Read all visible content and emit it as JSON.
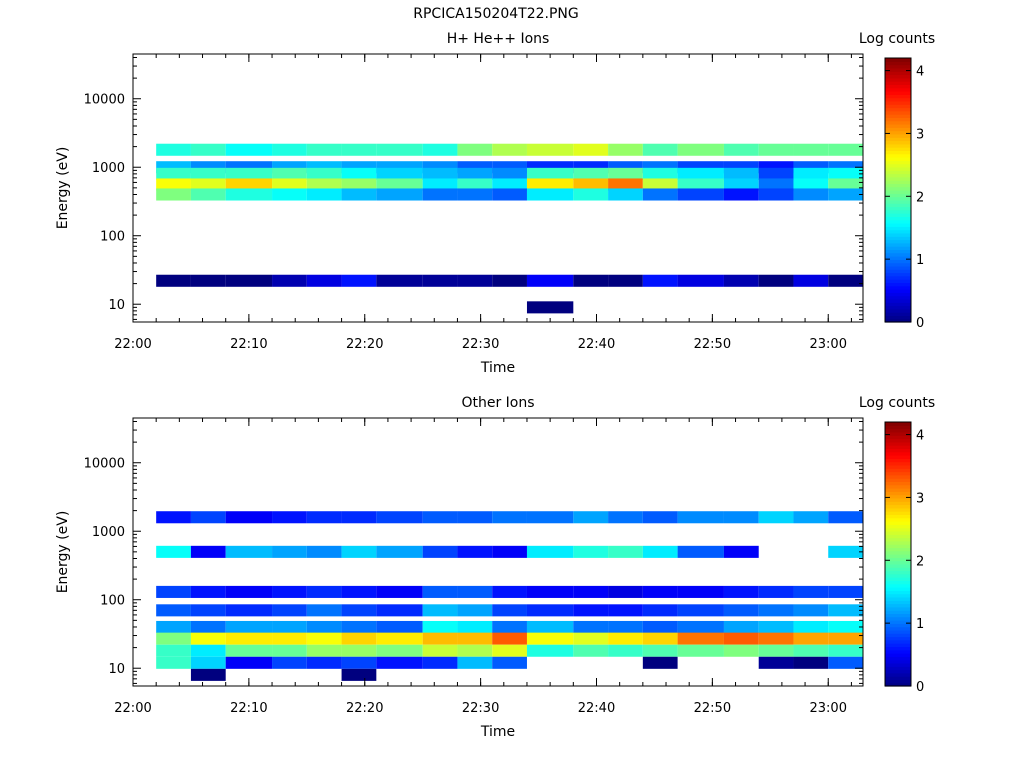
{
  "figure_title": "RPCICA150204T22.PNG",
  "colorscale": [
    "#00007f",
    "#0000ff",
    "#007fff",
    "#00ffff",
    "#7fff7f",
    "#ffff00",
    "#ff7f00",
    "#ff0000",
    "#7f0000"
  ],
  "chart_data": [
    {
      "type": "heatmap",
      "title": "H+ He++ Ions",
      "xlabel": "Time",
      "ylabel": "Energy (eV)",
      "colorbar_label": "Log counts",
      "y_scale": "log",
      "ylim": [
        5.5,
        45000
      ],
      "xlim": [
        "22:00",
        "23:03"
      ],
      "x_ticks": [
        "22:00",
        "22:10",
        "22:20",
        "22:30",
        "22:40",
        "22:50",
        "23:00"
      ],
      "y_ticks": [
        "10",
        "100",
        "1000",
        "10000"
      ],
      "colorbar_ticks": [
        "0",
        "1",
        "2",
        "3",
        "4"
      ],
      "color_range": [
        0,
        4.2
      ],
      "time_bins_start": [
        "22:02",
        "22:05",
        "22:08",
        "22:12",
        "22:15",
        "22:18",
        "22:21",
        "22:25",
        "22:28",
        "22:31",
        "22:34",
        "22:38",
        "22:41",
        "22:44",
        "22:47",
        "22:51",
        "22:54",
        "22:57",
        "23:00"
      ],
      "energy_bands_ev": [
        {
          "energy": 1800,
          "values": [
            1.7,
            1.8,
            1.6,
            1.7,
            1.8,
            1.8,
            1.8,
            1.7,
            2.1,
            2.3,
            2.4,
            2.5,
            2.2,
            1.9,
            2.1,
            1.9,
            2.0,
            2.0,
            2.0
          ]
        },
        {
          "energy": 1000,
          "values": [
            1.3,
            1.1,
            1.0,
            1.2,
            1.3,
            1.2,
            1.2,
            1.1,
            0.9,
            0.9,
            0.7,
            0.7,
            0.9,
            1.0,
            0.8,
            0.8,
            0.6,
            0.9,
            1.0
          ]
        },
        {
          "energy": 800,
          "values": [
            1.8,
            1.8,
            1.8,
            1.9,
            1.8,
            1.6,
            1.4,
            1.3,
            1.2,
            1.1,
            1.8,
            1.9,
            2.0,
            1.7,
            1.5,
            1.3,
            0.8,
            1.5,
            1.6
          ]
        },
        {
          "energy": 560,
          "values": [
            2.6,
            2.5,
            2.8,
            2.5,
            2.3,
            2.2,
            2.0,
            1.5,
            1.8,
            1.5,
            2.7,
            2.9,
            3.2,
            2.4,
            1.8,
            1.4,
            1.0,
            1.6,
            2.0
          ]
        },
        {
          "energy": 400,
          "values": [
            2.1,
            1.9,
            1.7,
            1.6,
            1.5,
            1.3,
            1.2,
            1.0,
            1.0,
            0.9,
            1.5,
            1.7,
            1.4,
            1.0,
            0.8,
            0.6,
            0.8,
            1.1,
            1.2
          ]
        },
        {
          "energy": 22,
          "values": [
            0.0,
            0.0,
            0.0,
            0.2,
            0.4,
            0.6,
            0.1,
            0.1,
            0.1,
            0.0,
            0.5,
            0.0,
            0.0,
            0.6,
            0.4,
            0.2,
            0.0,
            0.4,
            0.0
          ]
        },
        {
          "energy": 9,
          "values": [
            null,
            null,
            null,
            null,
            null,
            null,
            null,
            null,
            null,
            null,
            0.0,
            null,
            null,
            null,
            null,
            null,
            null,
            null,
            null
          ]
        }
      ]
    },
    {
      "type": "heatmap",
      "title": "Other Ions",
      "xlabel": "Time",
      "ylabel": "Energy (eV)",
      "colorbar_label": "Log counts",
      "y_scale": "log",
      "ylim": [
        5.5,
        45000
      ],
      "xlim": [
        "22:00",
        "23:03"
      ],
      "x_ticks": [
        "22:00",
        "22:10",
        "22:20",
        "22:30",
        "22:40",
        "22:50",
        "23:00"
      ],
      "y_ticks": [
        "10",
        "100",
        "1000",
        "10000"
      ],
      "colorbar_ticks": [
        "0",
        "1",
        "2",
        "3",
        "4"
      ],
      "color_range": [
        0,
        4.2
      ],
      "time_bins_start": [
        "22:02",
        "22:05",
        "22:08",
        "22:12",
        "22:15",
        "22:18",
        "22:21",
        "22:25",
        "22:28",
        "22:31",
        "22:34",
        "22:38",
        "22:41",
        "22:44",
        "22:47",
        "22:51",
        "22:54",
        "22:57",
        "23:00"
      ],
      "energy_bands_ev": [
        {
          "energy": 1600,
          "values": [
            0.6,
            0.8,
            0.5,
            0.6,
            0.7,
            0.7,
            0.8,
            0.9,
            0.9,
            1.0,
            1.0,
            1.2,
            1.0,
            0.9,
            1.1,
            1.1,
            1.4,
            1.2,
            0.9
          ]
        },
        {
          "energy": 500,
          "values": [
            1.6,
            0.5,
            1.3,
            1.2,
            1.1,
            1.4,
            1.2,
            0.8,
            0.6,
            0.5,
            1.5,
            1.7,
            1.8,
            1.5,
            0.9,
            0.5,
            null,
            null,
            1.4
          ]
        },
        {
          "energy": 130,
          "values": [
            0.8,
            0.6,
            0.5,
            0.6,
            0.7,
            0.6,
            0.5,
            0.9,
            0.9,
            0.6,
            0.5,
            0.5,
            0.4,
            0.5,
            0.5,
            0.6,
            0.7,
            0.8,
            0.8
          ]
        },
        {
          "energy": 70,
          "values": [
            0.9,
            0.8,
            0.7,
            0.8,
            1.0,
            0.8,
            0.7,
            1.3,
            1.2,
            0.8,
            0.7,
            0.6,
            0.6,
            0.7,
            0.8,
            0.9,
            1.0,
            1.1,
            1.3
          ]
        },
        {
          "energy": 40,
          "values": [
            1.2,
            1.0,
            1.2,
            1.2,
            1.1,
            1.0,
            0.9,
            1.6,
            1.5,
            1.0,
            1.3,
            1.0,
            1.0,
            0.9,
            1.0,
            1.2,
            1.3,
            1.5,
            1.6
          ]
        },
        {
          "energy": 27,
          "values": [
            2.1,
            2.6,
            2.7,
            2.7,
            2.6,
            2.8,
            2.7,
            2.9,
            2.9,
            3.3,
            2.6,
            2.5,
            2.7,
            2.8,
            3.2,
            3.3,
            3.2,
            3.0,
            3.0
          ]
        },
        {
          "energy": 18,
          "values": [
            1.8,
            1.5,
            2.0,
            2.0,
            2.2,
            2.2,
            2.1,
            2.4,
            2.3,
            2.5,
            1.7,
            1.9,
            1.8,
            1.9,
            2.0,
            2.1,
            2.0,
            1.9,
            1.8
          ]
        },
        {
          "energy": 12,
          "values": [
            1.8,
            1.4,
            0.5,
            0.8,
            0.7,
            0.8,
            0.6,
            0.7,
            1.3,
            0.9,
            null,
            null,
            null,
            0.0,
            null,
            null,
            0.1,
            0.0,
            0.9
          ]
        },
        {
          "energy": 8,
          "values": [
            null,
            0.0,
            null,
            null,
            null,
            0.0,
            null,
            null,
            null,
            null,
            null,
            null,
            null,
            null,
            null,
            null,
            null,
            null,
            null
          ]
        }
      ]
    }
  ]
}
